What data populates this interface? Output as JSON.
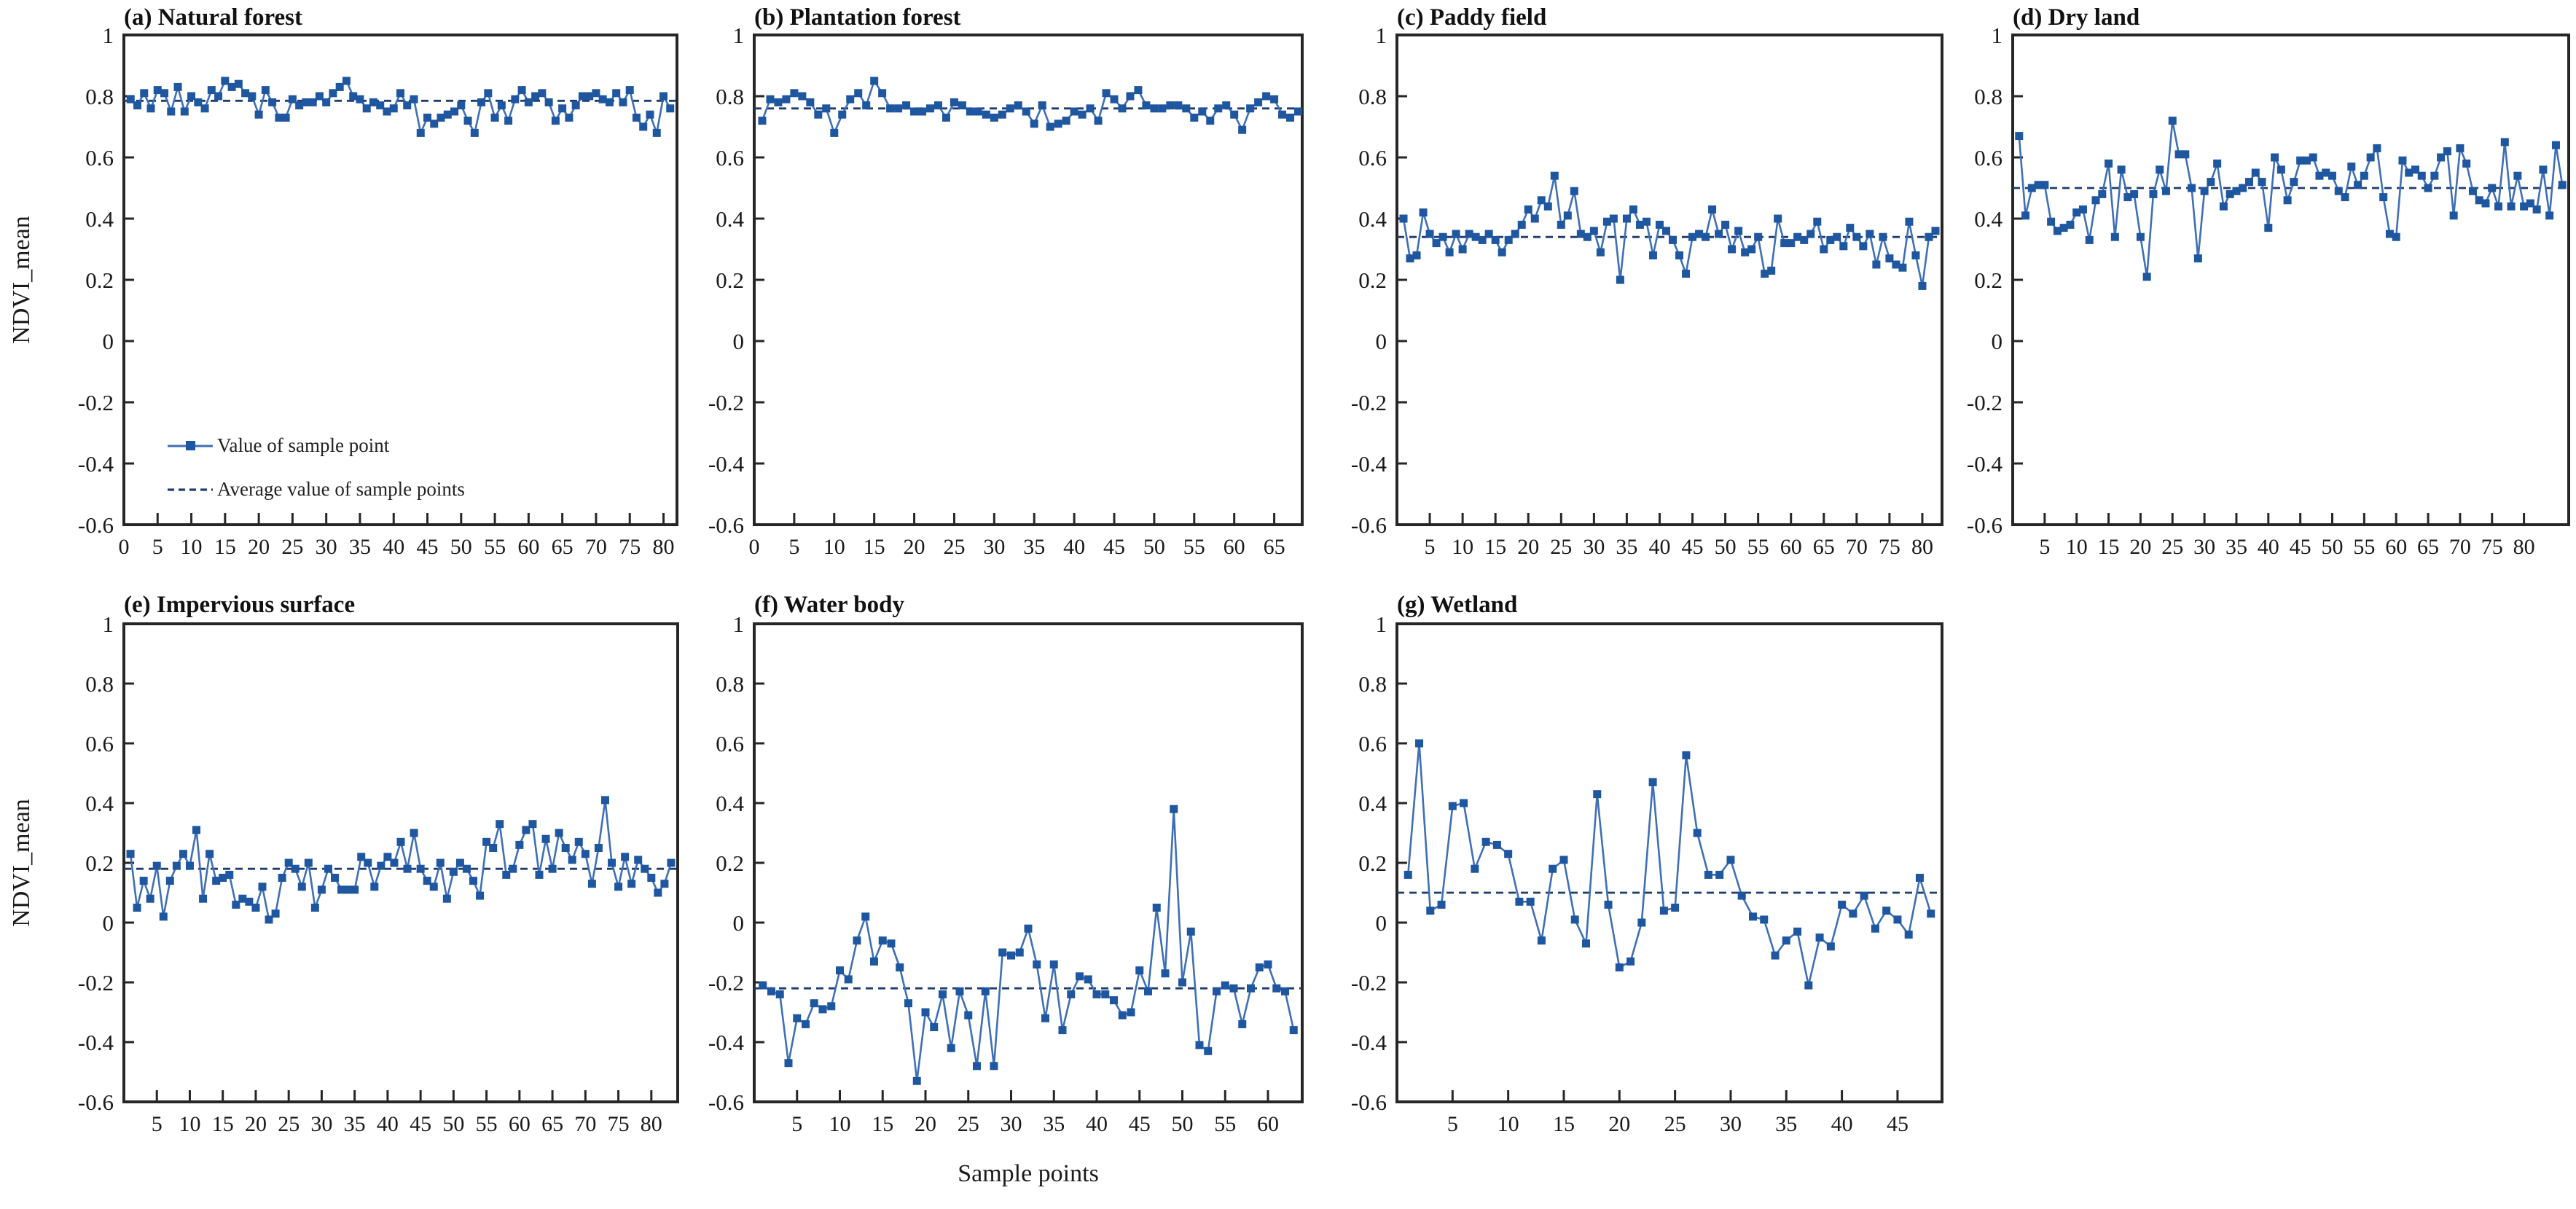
{
  "figure": {
    "ylabel": "NDVI_mean",
    "xlabel": "Sample points",
    "legend": {
      "line_label": "Value of sample point",
      "avg_label": "Average value of sample points"
    },
    "colors": {
      "line": "#3f6fb5",
      "marker": "#1e56a0",
      "average": "#1e3c6e",
      "axis": "#262626",
      "text": "#1a1a1a"
    }
  },
  "chart_data": [
    {
      "type": "line",
      "id": "a",
      "title": "(a) Natural forest",
      "ylabel": "NDVI_mean",
      "ylim": [
        -0.6,
        1
      ],
      "ytick_values": [
        1,
        0.8,
        0.6,
        0.4,
        0.2,
        0,
        -0.2,
        -0.4,
        -0.6
      ],
      "ytick_labels": [
        "1",
        "0.8",
        "0.6",
        "0.4",
        "0.2",
        "0",
        "-0.2",
        "-0.4",
        "-0.6"
      ],
      "xlim": [
        0,
        82
      ],
      "xticks": [
        0,
        5,
        10,
        15,
        20,
        25,
        30,
        35,
        40,
        45,
        50,
        55,
        60,
        65,
        70,
        75,
        80
      ],
      "average": 0.785,
      "values": [
        0.79,
        0.77,
        0.81,
        0.76,
        0.82,
        0.81,
        0.75,
        0.83,
        0.75,
        0.8,
        0.78,
        0.76,
        0.82,
        0.8,
        0.85,
        0.83,
        0.84,
        0.81,
        0.8,
        0.74,
        0.82,
        0.78,
        0.73,
        0.73,
        0.79,
        0.77,
        0.78,
        0.78,
        0.8,
        0.78,
        0.81,
        0.83,
        0.85,
        0.8,
        0.79,
        0.76,
        0.78,
        0.77,
        0.75,
        0.76,
        0.81,
        0.77,
        0.79,
        0.68,
        0.73,
        0.71,
        0.73,
        0.74,
        0.75,
        0.77,
        0.72,
        0.68,
        0.78,
        0.81,
        0.73,
        0.77,
        0.72,
        0.79,
        0.82,
        0.78,
        0.8,
        0.81,
        0.78,
        0.72,
        0.76,
        0.73,
        0.77,
        0.8,
        0.8,
        0.81,
        0.79,
        0.78,
        0.81,
        0.78,
        0.82,
        0.73,
        0.7,
        0.74,
        0.68,
        0.8,
        0.76
      ]
    },
    {
      "type": "line",
      "id": "b",
      "title": "(b) Plantation forest",
      "ylim": [
        -0.6,
        1
      ],
      "ytick_values": [
        1,
        0.8,
        0.6,
        0.4,
        0.2,
        0,
        -0.2,
        -0.4,
        -0.6
      ],
      "ytick_labels": [
        "1",
        "0.8",
        "0.6",
        "0.4",
        "0.2",
        "0",
        "-0.2",
        "-0.4",
        "-0.6"
      ],
      "xlim": [
        0,
        68.5
      ],
      "xticks": [
        0,
        5,
        10,
        15,
        20,
        25,
        30,
        35,
        40,
        45,
        50,
        55,
        60,
        65
      ],
      "average": 0.76,
      "values": [
        0.72,
        0.79,
        0.78,
        0.79,
        0.81,
        0.8,
        0.78,
        0.74,
        0.76,
        0.68,
        0.74,
        0.79,
        0.81,
        0.77,
        0.85,
        0.81,
        0.76,
        0.76,
        0.77,
        0.75,
        0.75,
        0.76,
        0.77,
        0.73,
        0.78,
        0.77,
        0.75,
        0.75,
        0.74,
        0.73,
        0.74,
        0.76,
        0.77,
        0.75,
        0.71,
        0.77,
        0.7,
        0.71,
        0.72,
        0.75,
        0.74,
        0.76,
        0.72,
        0.81,
        0.79,
        0.76,
        0.8,
        0.82,
        0.77,
        0.76,
        0.76,
        0.77,
        0.77,
        0.76,
        0.73,
        0.75,
        0.72,
        0.76,
        0.77,
        0.74,
        0.69,
        0.76,
        0.78,
        0.8,
        0.79,
        0.74,
        0.73,
        0.75
      ]
    },
    {
      "type": "line",
      "id": "c",
      "title": "(c) Paddy field",
      "ylim": [
        -0.6,
        1
      ],
      "ytick_values": [
        1,
        0.8,
        0.6,
        0.4,
        0.2,
        0,
        -0.2,
        -0.4,
        -0.6
      ],
      "ytick_labels": [
        "1",
        "0.8",
        "0.6",
        "0.4",
        "0.2",
        "0",
        "-0.2",
        "-0.4",
        "-0.6"
      ],
      "xlim": [
        0,
        83
      ],
      "xticks": [
        5,
        10,
        15,
        20,
        25,
        30,
        35,
        40,
        45,
        50,
        55,
        60,
        65,
        70,
        75,
        80
      ],
      "average": 0.34,
      "values": [
        0.4,
        0.27,
        0.28,
        0.42,
        0.35,
        0.32,
        0.34,
        0.29,
        0.35,
        0.3,
        0.35,
        0.34,
        0.33,
        0.35,
        0.33,
        0.29,
        0.33,
        0.35,
        0.38,
        0.43,
        0.4,
        0.46,
        0.44,
        0.54,
        0.38,
        0.41,
        0.49,
        0.35,
        0.34,
        0.36,
        0.29,
        0.39,
        0.4,
        0.2,
        0.4,
        0.43,
        0.38,
        0.39,
        0.28,
        0.38,
        0.36,
        0.33,
        0.28,
        0.22,
        0.34,
        0.35,
        0.34,
        0.43,
        0.35,
        0.38,
        0.3,
        0.36,
        0.29,
        0.3,
        0.34,
        0.22,
        0.23,
        0.4,
        0.32,
        0.32,
        0.34,
        0.33,
        0.35,
        0.39,
        0.3,
        0.33,
        0.34,
        0.31,
        0.37,
        0.34,
        0.31,
        0.35,
        0.25,
        0.34,
        0.27,
        0.25,
        0.24,
        0.39,
        0.28,
        0.18,
        0.34,
        0.36
      ]
    },
    {
      "type": "line",
      "id": "d",
      "title": "(d) Dry land",
      "ylim": [
        -0.6,
        1
      ],
      "ytick_values": [
        1,
        0.8,
        0.6,
        0.4,
        0.2,
        0,
        -0.2,
        -0.4,
        -0.6
      ],
      "ytick_labels": [
        "1",
        "0.8",
        "0.6",
        "0.4",
        "0.2",
        "0",
        "-0.2",
        "-0.4",
        "-0.6"
      ],
      "xlim": [
        0,
        87
      ],
      "xticks": [
        5,
        10,
        15,
        20,
        25,
        30,
        35,
        40,
        45,
        50,
        55,
        60,
        65,
        70,
        75,
        80
      ],
      "average": 0.5,
      "values": [
        0.67,
        0.41,
        0.5,
        0.51,
        0.51,
        0.39,
        0.36,
        0.37,
        0.38,
        0.42,
        0.43,
        0.33,
        0.46,
        0.48,
        0.58,
        0.34,
        0.56,
        0.47,
        0.48,
        0.34,
        0.21,
        0.48,
        0.56,
        0.49,
        0.72,
        0.61,
        0.61,
        0.5,
        0.27,
        0.49,
        0.52,
        0.58,
        0.44,
        0.48,
        0.49,
        0.5,
        0.52,
        0.55,
        0.52,
        0.37,
        0.6,
        0.56,
        0.46,
        0.52,
        0.59,
        0.59,
        0.6,
        0.54,
        0.55,
        0.54,
        0.49,
        0.47,
        0.57,
        0.51,
        0.54,
        0.6,
        0.63,
        0.47,
        0.35,
        0.34,
        0.59,
        0.55,
        0.56,
        0.54,
        0.5,
        0.54,
        0.6,
        0.62,
        0.41,
        0.63,
        0.58,
        0.49,
        0.46,
        0.45,
        0.5,
        0.44,
        0.65,
        0.44,
        0.54,
        0.44,
        0.45,
        0.43,
        0.56,
        0.41,
        0.64,
        0.51
      ]
    },
    {
      "type": "line",
      "id": "e",
      "title": "(e) Impervious surface",
      "ylabel": "NDVI_mean",
      "ylim": [
        -0.6,
        1
      ],
      "ytick_values": [
        1,
        0.8,
        0.6,
        0.4,
        0.2,
        0,
        -0.2,
        -0.4,
        -0.6
      ],
      "ytick_labels": [
        "1",
        "0.8",
        "0.6",
        "0.4",
        "0.2",
        "0",
        "-0.2",
        "-0.4",
        "-0.6"
      ],
      "xlim": [
        0,
        84
      ],
      "xticks": [
        5,
        10,
        15,
        20,
        25,
        30,
        35,
        40,
        45,
        50,
        55,
        60,
        65,
        70,
        75,
        80
      ],
      "average": 0.18,
      "values": [
        0.23,
        0.05,
        0.14,
        0.08,
        0.19,
        0.02,
        0.14,
        0.19,
        0.23,
        0.19,
        0.31,
        0.08,
        0.23,
        0.14,
        0.15,
        0.16,
        0.06,
        0.08,
        0.07,
        0.05,
        0.12,
        0.01,
        0.03,
        0.15,
        0.2,
        0.18,
        0.12,
        0.2,
        0.05,
        0.11,
        0.18,
        0.15,
        0.11,
        0.11,
        0.11,
        0.22,
        0.2,
        0.12,
        0.19,
        0.22,
        0.2,
        0.27,
        0.18,
        0.3,
        0.18,
        0.14,
        0.12,
        0.2,
        0.08,
        0.17,
        0.2,
        0.18,
        0.14,
        0.09,
        0.27,
        0.25,
        0.33,
        0.16,
        0.18,
        0.26,
        0.31,
        0.33,
        0.16,
        0.28,
        0.18,
        0.3,
        0.25,
        0.21,
        0.27,
        0.23,
        0.13,
        0.25,
        0.41,
        0.2,
        0.12,
        0.22,
        0.13,
        0.21,
        0.18,
        0.15,
        0.1,
        0.13,
        0.2
      ]
    },
    {
      "type": "line",
      "id": "f",
      "title": "(f) Water body",
      "xlabel": "Sample points",
      "ylim": [
        -0.6,
        1
      ],
      "ytick_values": [
        1,
        0.8,
        0.6,
        0.4,
        0.2,
        0,
        -0.2,
        -0.4,
        -0.6
      ],
      "ytick_labels": [
        "1",
        "0.8",
        "0.6",
        "0.4",
        "0.2",
        "0",
        "-0.2",
        "-0.4",
        "-0.6"
      ],
      "xlim": [
        0,
        64
      ],
      "xticks": [
        5,
        10,
        15,
        20,
        25,
        30,
        35,
        40,
        45,
        50,
        55,
        60
      ],
      "average": -0.22,
      "values": [
        -0.21,
        -0.23,
        -0.24,
        -0.47,
        -0.32,
        -0.34,
        -0.27,
        -0.29,
        -0.28,
        -0.16,
        -0.19,
        -0.06,
        0.02,
        -0.13,
        -0.06,
        -0.07,
        -0.15,
        -0.27,
        -0.53,
        -0.3,
        -0.35,
        -0.24,
        -0.42,
        -0.23,
        -0.31,
        -0.48,
        -0.23,
        -0.48,
        -0.1,
        -0.11,
        -0.1,
        -0.02,
        -0.14,
        -0.32,
        -0.14,
        -0.36,
        -0.24,
        -0.18,
        -0.19,
        -0.24,
        -0.24,
        -0.26,
        -0.31,
        -0.3,
        -0.16,
        -0.23,
        0.05,
        -0.17,
        0.38,
        -0.2,
        -0.03,
        -0.41,
        -0.43,
        -0.23,
        -0.21,
        -0.22,
        -0.34,
        -0.22,
        -0.15,
        -0.14,
        -0.22,
        -0.23,
        -0.36
      ]
    },
    {
      "type": "line",
      "id": "g",
      "title": "(g) Wetland",
      "ylim": [
        -0.6,
        1
      ],
      "ytick_values": [
        1,
        0.8,
        0.6,
        0.4,
        0.2,
        0,
        -0.2,
        -0.4,
        -0.6
      ],
      "ytick_labels": [
        "1",
        "0.8",
        "0.6",
        "0.4",
        "0.2",
        "0",
        "-0.2",
        "-0.4",
        "-0.6"
      ],
      "xlim": [
        0,
        49
      ],
      "xticks": [
        5,
        10,
        15,
        20,
        25,
        30,
        35,
        40,
        45
      ],
      "average": 0.1,
      "values": [
        0.16,
        0.6,
        0.04,
        0.06,
        0.39,
        0.4,
        0.18,
        0.27,
        0.26,
        0.23,
        0.07,
        0.07,
        -0.06,
        0.18,
        0.21,
        0.01,
        -0.07,
        0.43,
        0.06,
        -0.15,
        -0.13,
        0.0,
        0.47,
        0.04,
        0.05,
        0.56,
        0.3,
        0.16,
        0.16,
        0.21,
        0.09,
        0.02,
        0.01,
        -0.11,
        -0.06,
        -0.03,
        -0.21,
        -0.05,
        -0.08,
        0.06,
        0.03,
        0.09,
        -0.02,
        0.04,
        0.01,
        -0.04,
        0.15,
        0.03
      ]
    }
  ]
}
